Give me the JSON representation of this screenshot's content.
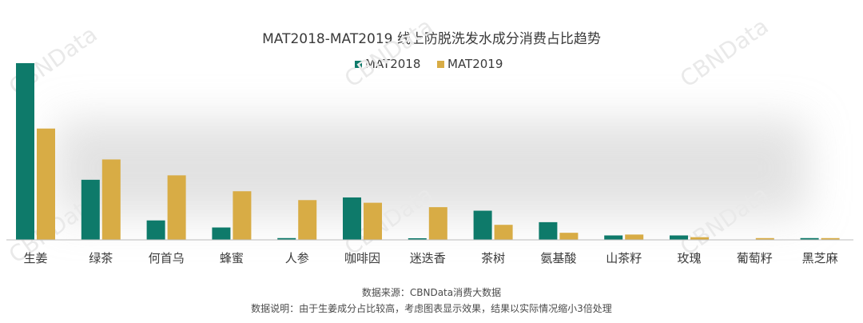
{
  "chart_data": {
    "type": "bar",
    "title": "MAT2018-MAT2019 线上防脱洗发水成分消费占比趋势",
    "categories": [
      "生姜",
      "绿茶",
      "何首乌",
      "蜂蜜",
      "人参",
      "咖啡因",
      "迷迭香",
      "茶树",
      "氨基酸",
      "山茶籽",
      "玫瑰",
      "葡萄籽",
      "黑芝麻"
    ],
    "series": [
      {
        "name": "MAT2018",
        "color": "#0e7a6a",
        "values": [
          100,
          34,
          11,
          7,
          1,
          24,
          0.5,
          16.5,
          10,
          2.5,
          2.5,
          0,
          1
        ]
      },
      {
        "name": "MAT2019",
        "color": "#d8ac45",
        "values": [
          63,
          45.5,
          36.5,
          27.5,
          22.5,
          21,
          18.5,
          8.5,
          4,
          3,
          1.5,
          1,
          1
        ]
      }
    ],
    "xlabel": "",
    "ylabel": "",
    "ylim": [
      0,
      100
    ],
    "grid": false,
    "legend": "top-center",
    "watermark": "CBNData"
  },
  "footer": {
    "source": "数据来源：CBNData消费大数据",
    "note": "数据说明：由于生姜成分占比较高，考虑图表显示效果，结果以实际情况缩小3倍处理"
  }
}
